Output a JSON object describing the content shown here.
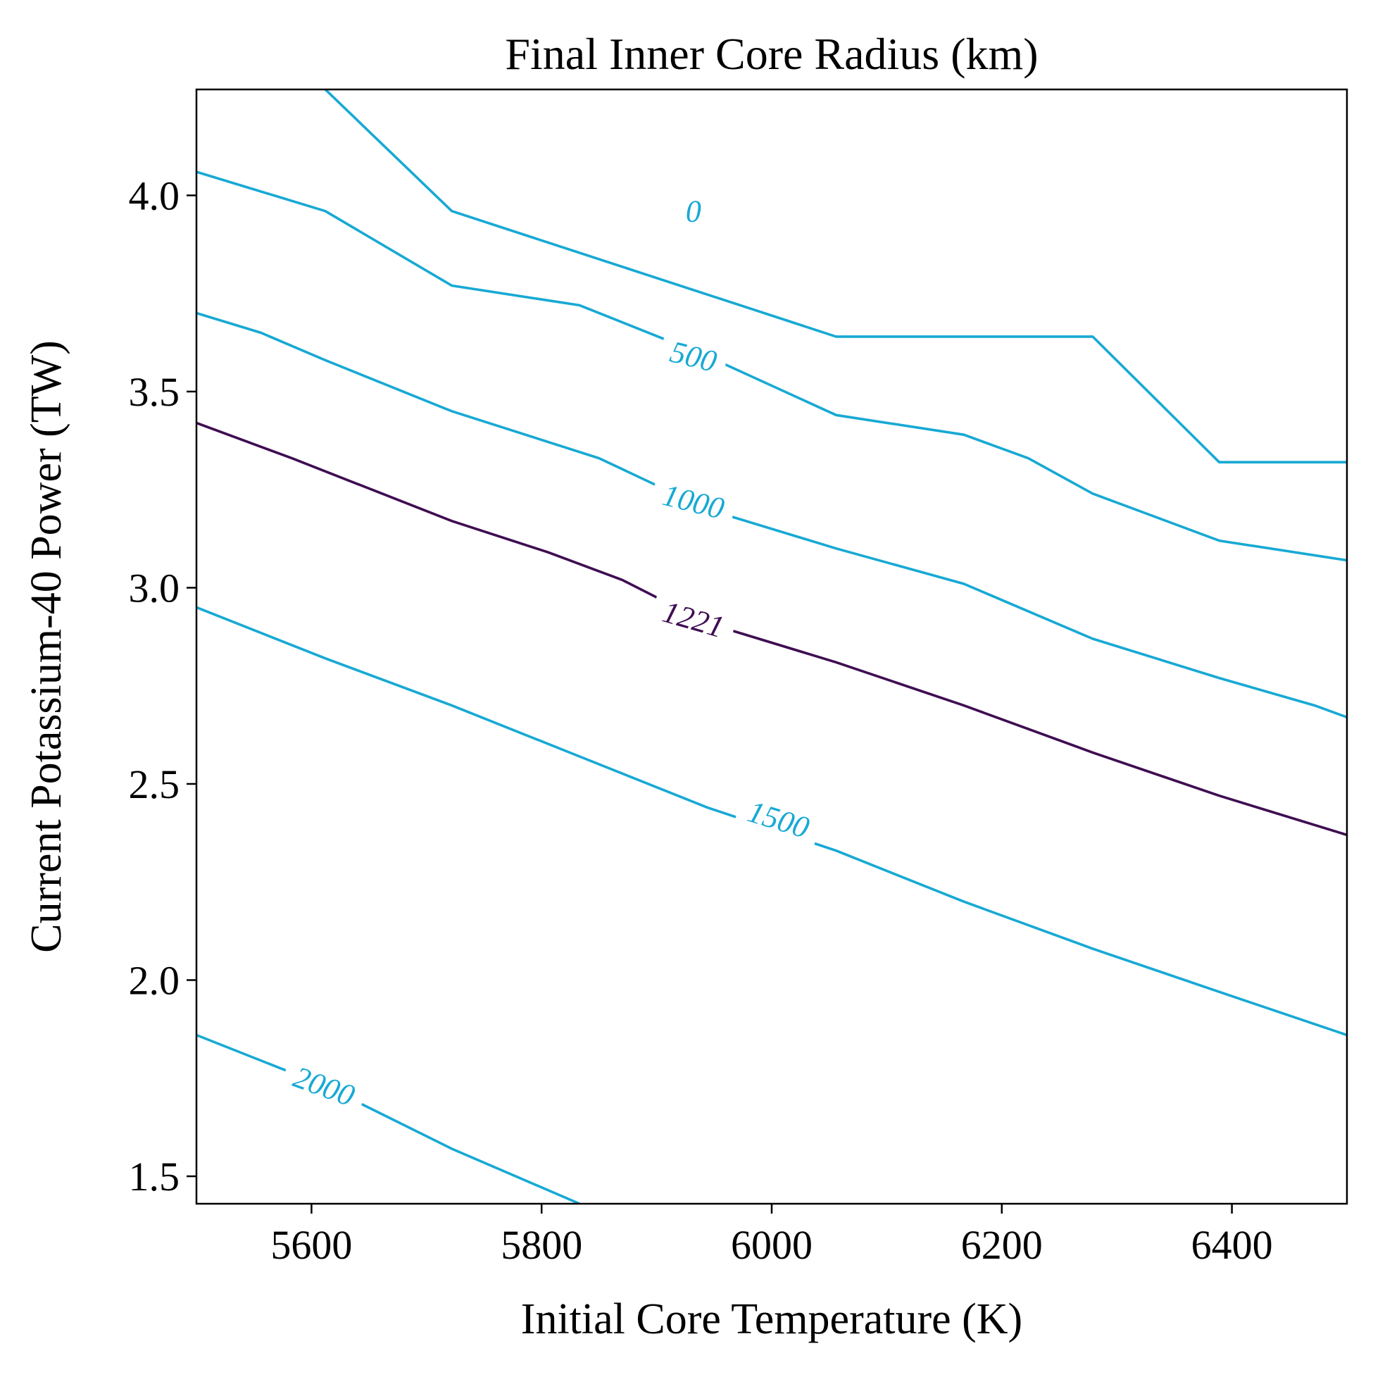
{
  "chart_data": {
    "type": "contour",
    "title": "Final Inner Core Radius (km)",
    "xlabel": "Initial Core Temperature (K)",
    "ylabel": "Current Potassium-40 Power (TW)",
    "xlim": [
      5500,
      6500
    ],
    "ylim": [
      1.43,
      4.27
    ],
    "xticks": [
      {
        "value": 5600,
        "label": "5600"
      },
      {
        "value": 5800,
        "label": "5800"
      },
      {
        "value": 6000,
        "label": "6000"
      },
      {
        "value": 6200,
        "label": "6200"
      },
      {
        "value": 6400,
        "label": "6400"
      }
    ],
    "yticks": [
      {
        "value": 1.5,
        "label": "1.5"
      },
      {
        "value": 2.0,
        "label": "2.0"
      },
      {
        "value": 2.5,
        "label": "2.5"
      },
      {
        "value": 3.0,
        "label": "3.0"
      },
      {
        "value": 3.5,
        "label": "3.5"
      },
      {
        "value": 4.0,
        "label": "4.0"
      }
    ],
    "grid": false,
    "legend": "none",
    "series": [
      {
        "level": "0",
        "color": "#17a9d4",
        "label_at": {
          "x": 5932,
          "y": 3.96,
          "angle": 0
        },
        "points": [
          [
            5612,
            4.27
          ],
          [
            5722,
            3.96
          ],
          [
            6056,
            3.64
          ],
          [
            6279,
            3.64
          ],
          [
            6389,
            3.32
          ],
          [
            6500,
            3.32
          ]
        ]
      },
      {
        "level": "500",
        "color": "#17a9d4",
        "label_at": {
          "x": 5932,
          "y": 3.59,
          "angle": 14
        },
        "points": [
          [
            5500,
            4.06
          ],
          [
            5612,
            3.96
          ],
          [
            5722,
            3.77
          ],
          [
            5833,
            3.72
          ],
          [
            5944,
            3.59
          ],
          [
            6056,
            3.44
          ],
          [
            6167,
            3.39
          ],
          [
            6223,
            3.33
          ],
          [
            6279,
            3.24
          ],
          [
            6389,
            3.12
          ],
          [
            6500,
            3.07
          ]
        ]
      },
      {
        "level": "1000",
        "color": "#17a9d4",
        "label_at": {
          "x": 5932,
          "y": 3.22,
          "angle": 14
        },
        "points": [
          [
            5500,
            3.7
          ],
          [
            5556,
            3.65
          ],
          [
            5612,
            3.58
          ],
          [
            5722,
            3.45
          ],
          [
            5850,
            3.33
          ],
          [
            5944,
            3.2
          ],
          [
            6056,
            3.1
          ],
          [
            6167,
            3.01
          ],
          [
            6279,
            2.87
          ],
          [
            6389,
            2.77
          ],
          [
            6472,
            2.7
          ],
          [
            6500,
            2.67
          ]
        ]
      },
      {
        "level": "1221",
        "color": "#3f0d52",
        "label_at": {
          "x": 5932,
          "y": 2.92,
          "angle": 16
        },
        "points": [
          [
            5500,
            3.42
          ],
          [
            5583,
            3.33
          ],
          [
            5722,
            3.17
          ],
          [
            5806,
            3.09
          ],
          [
            5870,
            3.02
          ],
          [
            5944,
            2.91
          ],
          [
            6056,
            2.81
          ],
          [
            6167,
            2.7
          ],
          [
            6279,
            2.58
          ],
          [
            6389,
            2.47
          ],
          [
            6500,
            2.37
          ]
        ]
      },
      {
        "level": "1500",
        "color": "#17a9d4",
        "label_at": {
          "x": 6006,
          "y": 2.41,
          "angle": 17
        },
        "points": [
          [
            5500,
            2.95
          ],
          [
            5612,
            2.82
          ],
          [
            5722,
            2.7
          ],
          [
            5833,
            2.57
          ],
          [
            5944,
            2.44
          ],
          [
            6056,
            2.33
          ],
          [
            6167,
            2.2
          ],
          [
            6279,
            2.08
          ],
          [
            6389,
            1.97
          ],
          [
            6500,
            1.86
          ]
        ]
      },
      {
        "level": "2000",
        "color": "#17a9d4",
        "label_at": {
          "x": 5611,
          "y": 1.73,
          "angle": 20
        },
        "points": [
          [
            5500,
            1.86
          ],
          [
            5612,
            1.73
          ],
          [
            5722,
            1.57
          ],
          [
            5833,
            1.43
          ]
        ]
      }
    ]
  }
}
